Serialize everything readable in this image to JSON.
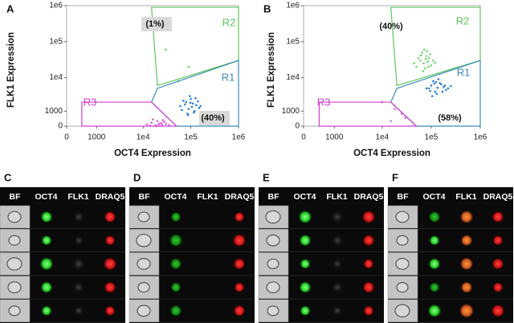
{
  "chart_data": [
    {
      "type": "scatter",
      "panel_label": "A",
      "xlabel": "OCT4 Expression",
      "ylabel": "FLK1 Expression",
      "xscale": "biexponential",
      "yscale": "biexponential",
      "xlim": [
        0,
        1000000
      ],
      "ylim": [
        0,
        1000000
      ],
      "xticks": [
        0,
        1000,
        {
          "value": 10000,
          "label": "1e4"
        },
        {
          "value": 100000,
          "label": "1e5"
        },
        {
          "value": 1000000,
          "label": "1e6"
        }
      ],
      "yticks": [
        0,
        1000,
        {
          "value": 10000,
          "label": "1e4"
        },
        {
          "value": 100000,
          "label": "1e5"
        },
        {
          "value": 1000000,
          "label": "1e6"
        }
      ],
      "gates": [
        {
          "name": "R2",
          "color": "#5cc85c",
          "x": [
            15000,
            1000000,
            1000000,
            20000
          ],
          "y": [
            900000,
            900000,
            30000,
            6000
          ]
        },
        {
          "name": "R1",
          "color": "#3a8ab8",
          "x": [
            20000,
            1000000,
            1000000,
            50000,
            15000
          ],
          "y": [
            5000,
            30000,
            0,
            0,
            2000
          ]
        },
        {
          "name": "R3",
          "color": "#d040d0",
          "x": [
            400,
            15000,
            50000,
            400
          ],
          "y": [
            2000,
            2000,
            0,
            0
          ]
        }
      ],
      "annotations": [
        "(1%)",
        "(40%)"
      ],
      "series": [
        {
          "color": "#2a7fd8",
          "x": [
            60000,
            80000,
            90000,
            100000,
            110000,
            120000,
            70000,
            95000,
            130000,
            150000,
            85000,
            105000,
            75000,
            140000,
            115000,
            65000,
            125000,
            98000,
            160000,
            88000
          ],
          "values": [
            1500,
            2000,
            1200,
            2500,
            1800,
            1000,
            2200,
            3000,
            1600,
            1300,
            800,
            1400,
            1700,
            2100,
            900,
            1100,
            2600,
            1900,
            1500,
            700
          ]
        },
        {
          "color": "#e060e0",
          "x": [
            12000,
            15000,
            18000,
            20000,
            22000,
            25000,
            28000,
            30000,
            16000,
            19000,
            24000,
            35000,
            14000,
            26000,
            21000
          ],
          "values": [
            100,
            200,
            50,
            300,
            150,
            80,
            250,
            120,
            400,
            0,
            180,
            60,
            30,
            350,
            90
          ]
        },
        {
          "color": "#6cd66c",
          "x": [
            55000,
            90000,
            30000
          ],
          "values": [
            8000,
            20000,
            60000
          ]
        }
      ]
    },
    {
      "type": "scatter",
      "panel_label": "B",
      "xlabel": "OCT4 Expression",
      "ylabel": "FLK1 Expression",
      "xscale": "biexponential",
      "yscale": "biexponential",
      "xlim": [
        0,
        1000000
      ],
      "ylim": [
        0,
        1000000
      ],
      "xticks": [
        0,
        1000,
        {
          "value": 10000,
          "label": "1e4"
        },
        {
          "value": 100000,
          "label": "1e5"
        },
        {
          "value": 1000000,
          "label": "1e6"
        }
      ],
      "yticks": [
        0,
        1000,
        {
          "value": 10000,
          "label": "1e4"
        },
        {
          "value": 100000,
          "label": "1e5"
        },
        {
          "value": 1000000,
          "label": "1e6"
        }
      ],
      "gates": [
        {
          "name": "R2",
          "color": "#5cc85c",
          "x": [
            15000,
            1000000,
            1000000,
            20000
          ],
          "y": [
            900000,
            900000,
            30000,
            6000
          ]
        },
        {
          "name": "R1",
          "color": "#3a8ab8",
          "x": [
            20000,
            1000000,
            1000000,
            50000,
            15000
          ],
          "y": [
            5000,
            30000,
            0,
            0,
            2000
          ]
        },
        {
          "name": "R3",
          "color": "#d040d0",
          "x": [
            400,
            15000,
            50000,
            400
          ],
          "y": [
            2000,
            2000,
            0,
            0
          ]
        }
      ],
      "annotations": [
        "(40%)",
        "(58%)"
      ],
      "series": [
        {
          "color": "#6cd66c",
          "x": [
            50000,
            60000,
            70000,
            80000,
            90000,
            100000,
            65000,
            75000,
            85000,
            55000,
            95000,
            72000,
            68000,
            110000,
            45000,
            78000,
            88000,
            62000,
            120000,
            82000
          ],
          "values": [
            20000,
            30000,
            25000,
            40000,
            35000,
            22000,
            50000,
            18000,
            28000,
            35000,
            45000,
            60000,
            15000,
            30000,
            25000,
            33000,
            20000,
            42000,
            26000,
            55000
          ]
        },
        {
          "color": "#2a7fd8",
          "x": [
            80000,
            100000,
            120000,
            150000,
            180000,
            200000,
            110000,
            130000,
            160000,
            90000,
            140000,
            170000,
            220000,
            105000,
            125000,
            190000,
            135000,
            95000,
            250000,
            115000
          ],
          "values": [
            5000,
            6000,
            4000,
            7000,
            5500,
            4500,
            8000,
            3500,
            6500,
            5000,
            9000,
            4000,
            5000,
            3000,
            7500,
            6000,
            5200,
            4200,
            5800,
            6800
          ]
        },
        {
          "color": "#e060e0",
          "x": [
            10000,
            18000,
            25000,
            30000,
            15000
          ],
          "values": [
            2000,
            1200,
            800,
            500,
            300
          ]
        }
      ]
    }
  ],
  "image_panels": [
    {
      "label": "C",
      "columns": [
        "BF",
        "OCT4",
        "FLK1",
        "DRAQ5"
      ]
    },
    {
      "label": "D",
      "columns": [
        "BF",
        "OCT4",
        "FLK1",
        "DRAQ5"
      ]
    },
    {
      "label": "E",
      "columns": [
        "BF",
        "OCT4",
        "FLK1",
        "DRAQ5"
      ]
    },
    {
      "label": "F",
      "columns": [
        "BF",
        "OCT4",
        "FLK1",
        "DRAQ5"
      ]
    }
  ]
}
